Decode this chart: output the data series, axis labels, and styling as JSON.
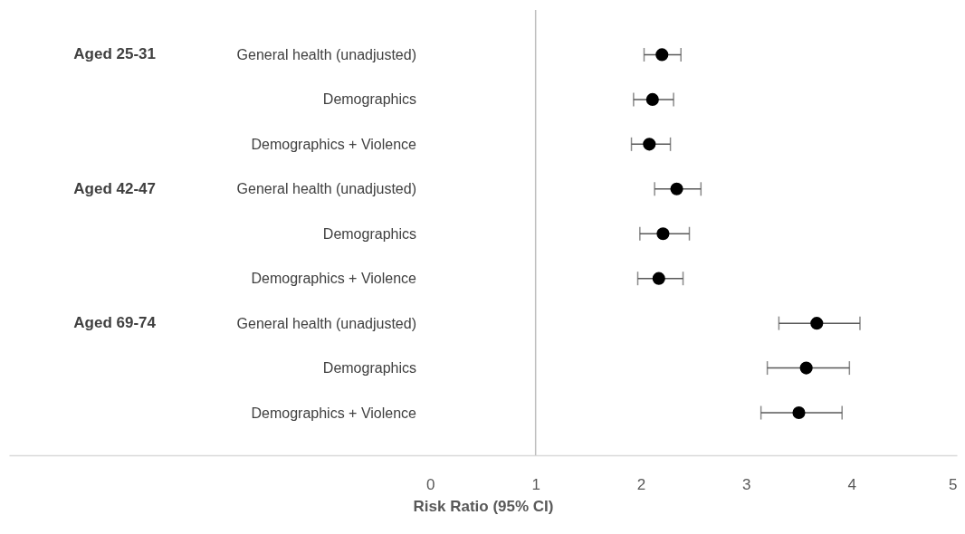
{
  "chart_data": {
    "type": "scatter",
    "orientation": "horizontal",
    "xlabel": "Risk Ratio (95% CI)",
    "categories": [
      "General health (unadjusted)",
      "Demographics",
      "Demographics + Violence",
      "General health (unadjusted)",
      "Demographics",
      "Demographics + Violence",
      "General health (unadjusted)",
      "Demographics",
      "Demographics + Violence"
    ],
    "series": [
      {
        "color": "#000000",
        "values": [
          2.2,
          2.11,
          2.08,
          2.34,
          2.21,
          2.17,
          3.67,
          3.57,
          3.5
        ],
        "errors": [
          [
            2.03,
            2.38
          ],
          [
            1.93,
            2.31
          ],
          [
            1.91,
            2.28
          ],
          [
            2.13,
            2.57
          ],
          [
            1.99,
            2.46
          ],
          [
            1.97,
            2.4
          ],
          [
            3.31,
            4.08
          ],
          [
            3.2,
            3.98
          ],
          [
            3.14,
            3.91
          ]
        ]
      }
    ],
    "annotations": [
      "Aged 25-31",
      "Aged 42-47",
      "Aged 69-74"
    ],
    "xlim": [
      -4,
      5
    ],
    "xticks": [
      0,
      1,
      2,
      3,
      4,
      5
    ],
    "ref_lines": [
      {
        "axis": "x",
        "value": 1,
        "color": "#bfbfbf"
      }
    ],
    "marker": "circle",
    "grid": false
  }
}
